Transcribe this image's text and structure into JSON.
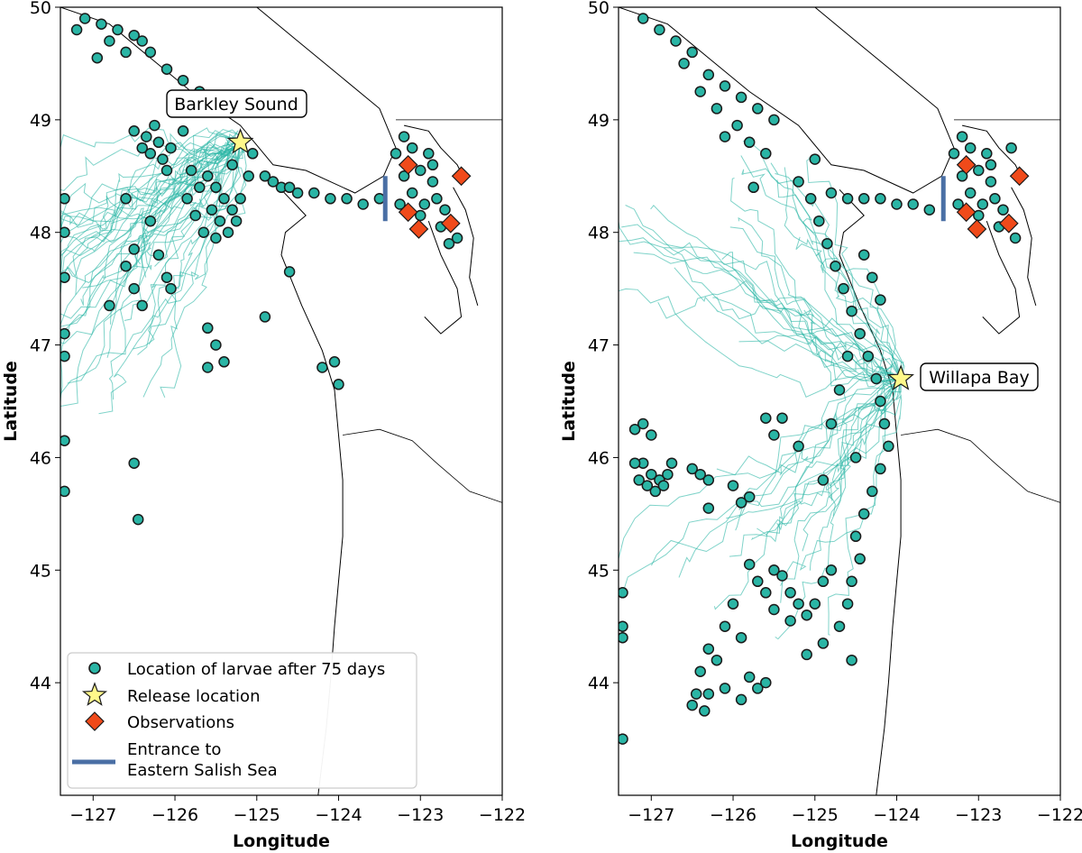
{
  "chart_data": [
    {
      "type": "scatter",
      "panel": "left",
      "xlabel": "Longitude",
      "ylabel": "Latitude",
      "xlim": [
        -127.4,
        -122.0
      ],
      "ylim": [
        43.0,
        50.0
      ],
      "xticks": [
        -127,
        -126,
        -125,
        -124,
        -123,
        -122
      ],
      "yticks": [
        44,
        45,
        46,
        47,
        48,
        49,
        50
      ],
      "xtick_labels": [
        "−127",
        "−126",
        "−125",
        "−124",
        "−123",
        "−122"
      ],
      "ytick_labels": [
        "44",
        "45",
        "46",
        "47",
        "48",
        "49",
        "50"
      ],
      "annotation": "Barkley Sound",
      "release_location": {
        "lon": -125.2,
        "lat": 48.8
      },
      "observations": [
        {
          "lon": -123.15,
          "lat": 48.6
        },
        {
          "lon": -122.5,
          "lat": 48.5
        },
        {
          "lon": -123.15,
          "lat": 48.18
        },
        {
          "lon": -123.02,
          "lat": 48.03
        },
        {
          "lon": -122.63,
          "lat": 48.08
        }
      ],
      "entrance_line": {
        "lon": -123.43,
        "lat_range": [
          48.1,
          48.5
        ]
      },
      "legend": {
        "position": "lower-left",
        "entries": [
          {
            "label": "Location of larvae after 75 days",
            "marker": "circle",
            "color": "#2ab5a5"
          },
          {
            "label": "Release location",
            "marker": "star",
            "color": "#fff88a"
          },
          {
            "label": "Observations",
            "marker": "diamond",
            "color": "#f04a1a"
          },
          {
            "label_lines": [
              "Entrance to",
              "Eastern Salish Sea"
            ],
            "marker": "line",
            "color": "#4a6fa5"
          }
        ]
      },
      "larvae": [
        [
          -127.1,
          49.9
        ],
        [
          -126.9,
          49.85
        ],
        [
          -126.7,
          49.8
        ],
        [
          -126.5,
          49.75
        ],
        [
          -126.3,
          49.6
        ],
        [
          -126.1,
          49.45
        ],
        [
          -125.9,
          49.35
        ],
        [
          -125.7,
          49.25
        ],
        [
          -125.5,
          49.15
        ],
        [
          -126.6,
          49.6
        ],
        [
          -126.4,
          49.7
        ],
        [
          -126.8,
          49.7
        ],
        [
          -127.2,
          49.8
        ],
        [
          -126.95,
          49.55
        ],
        [
          -126.5,
          48.9
        ],
        [
          -126.35,
          48.85
        ],
        [
          -126.2,
          48.8
        ],
        [
          -126.05,
          48.75
        ],
        [
          -126.3,
          48.7
        ],
        [
          -126.15,
          48.65
        ],
        [
          -126.4,
          48.75
        ],
        [
          -126.25,
          48.95
        ],
        [
          -125.9,
          48.9
        ],
        [
          -126.1,
          48.55
        ],
        [
          -125.8,
          48.55
        ],
        [
          -125.6,
          48.5
        ],
        [
          -125.5,
          48.4
        ],
        [
          -125.4,
          48.3
        ],
        [
          -125.3,
          48.2
        ],
        [
          -125.25,
          48.1
        ],
        [
          -125.35,
          48.0
        ],
        [
          -125.5,
          47.95
        ],
        [
          -125.65,
          48.0
        ],
        [
          -125.75,
          48.15
        ],
        [
          -125.85,
          48.3
        ],
        [
          -125.7,
          48.4
        ],
        [
          -125.55,
          48.2
        ],
        [
          -125.45,
          48.1
        ],
        [
          -125.2,
          48.3
        ],
        [
          -125.1,
          48.5
        ],
        [
          -125.3,
          48.6
        ],
        [
          -125.05,
          48.7
        ],
        [
          -124.9,
          48.5
        ],
        [
          -126.6,
          48.3
        ],
        [
          -126.3,
          48.1
        ],
        [
          -126.1,
          47.6
        ],
        [
          -126.05,
          47.5
        ],
        [
          -126.5,
          47.5
        ],
        [
          -126.2,
          47.8
        ],
        [
          -126.8,
          47.35
        ],
        [
          -126.4,
          47.35
        ],
        [
          -126.6,
          47.7
        ],
        [
          -126.5,
          47.85
        ],
        [
          -125.6,
          47.15
        ],
        [
          -125.5,
          47.0
        ],
        [
          -125.4,
          46.85
        ],
        [
          -125.6,
          46.8
        ],
        [
          -124.9,
          47.25
        ],
        [
          -124.6,
          47.65
        ],
        [
          -124.2,
          46.8
        ],
        [
          -124.05,
          46.85
        ],
        [
          -124.0,
          46.65
        ],
        [
          -126.5,
          45.95
        ],
        [
          -126.45,
          45.45
        ],
        [
          -124.7,
          48.4
        ],
        [
          -124.5,
          48.35
        ],
        [
          -124.3,
          48.35
        ],
        [
          -124.1,
          48.3
        ],
        [
          -123.9,
          48.3
        ],
        [
          -123.7,
          48.25
        ],
        [
          -123.5,
          48.3
        ],
        [
          -124.8,
          48.45
        ],
        [
          -124.6,
          48.4
        ],
        [
          -123.3,
          48.7
        ],
        [
          -123.1,
          48.75
        ],
        [
          -122.9,
          48.7
        ],
        [
          -123.2,
          48.5
        ],
        [
          -123.0,
          48.55
        ],
        [
          -122.85,
          48.45
        ],
        [
          -123.1,
          48.35
        ],
        [
          -122.95,
          48.25
        ],
        [
          -122.8,
          48.3
        ],
        [
          -122.7,
          48.2
        ],
        [
          -123.25,
          48.25
        ],
        [
          -123.0,
          48.15
        ],
        [
          -122.75,
          48.05
        ],
        [
          -122.85,
          48.6
        ],
        [
          -123.2,
          48.85
        ],
        [
          -122.55,
          47.95
        ],
        [
          -122.65,
          47.9
        ],
        [
          -127.35,
          48.3
        ],
        [
          -127.35,
          48.0
        ],
        [
          -127.35,
          47.6
        ],
        [
          -127.35,
          47.1
        ],
        [
          -127.35,
          46.9
        ],
        [
          -127.35,
          46.15
        ],
        [
          -127.35,
          45.7
        ]
      ]
    },
    {
      "type": "scatter",
      "panel": "right",
      "xlabel": "Longitude",
      "ylabel": "Latitude",
      "xlim": [
        -127.4,
        -122.0
      ],
      "ylim": [
        43.0,
        50.0
      ],
      "xticks": [
        -127,
        -126,
        -125,
        -124,
        -123,
        -122
      ],
      "yticks": [
        44,
        45,
        46,
        47,
        48,
        49,
        50
      ],
      "xtick_labels": [
        "−127",
        "−126",
        "−125",
        "−124",
        "−123",
        "−122"
      ],
      "ytick_labels": [
        "44",
        "45",
        "46",
        "47",
        "48",
        "49",
        "50"
      ],
      "annotation": "Willapa Bay",
      "release_location": {
        "lon": -123.95,
        "lat": 46.7
      },
      "observations": [
        {
          "lon": -123.15,
          "lat": 48.6
        },
        {
          "lon": -122.5,
          "lat": 48.5
        },
        {
          "lon": -123.15,
          "lat": 48.18
        },
        {
          "lon": -123.02,
          "lat": 48.03
        },
        {
          "lon": -122.63,
          "lat": 48.08
        }
      ],
      "entrance_line": {
        "lon": -123.43,
        "lat_range": [
          48.1,
          48.5
        ]
      },
      "larvae": [
        [
          -127.1,
          49.9
        ],
        [
          -126.9,
          49.8
        ],
        [
          -126.7,
          49.7
        ],
        [
          -126.5,
          49.6
        ],
        [
          -126.3,
          49.4
        ],
        [
          -126.1,
          49.3
        ],
        [
          -125.9,
          49.2
        ],
        [
          -125.7,
          49.1
        ],
        [
          -125.5,
          49.0
        ],
        [
          -126.4,
          49.25
        ],
        [
          -126.2,
          49.1
        ],
        [
          -125.95,
          48.95
        ],
        [
          -126.1,
          48.85
        ],
        [
          -126.6,
          49.5
        ],
        [
          -125.8,
          48.8
        ],
        [
          -125.6,
          48.7
        ],
        [
          -125.0,
          48.65
        ],
        [
          -125.75,
          48.4
        ],
        [
          -125.2,
          48.45
        ],
        [
          -125.05,
          48.3
        ],
        [
          -124.95,
          48.1
        ],
        [
          -124.85,
          47.9
        ],
        [
          -124.75,
          47.7
        ],
        [
          -124.65,
          47.5
        ],
        [
          -124.55,
          47.3
        ],
        [
          -124.45,
          47.1
        ],
        [
          -124.35,
          46.9
        ],
        [
          -124.25,
          46.7
        ],
        [
          -124.2,
          46.5
        ],
        [
          -124.15,
          46.3
        ],
        [
          -124.1,
          46.1
        ],
        [
          -124.2,
          45.9
        ],
        [
          -124.3,
          45.7
        ],
        [
          -124.4,
          45.5
        ],
        [
          -124.5,
          45.3
        ],
        [
          -124.45,
          45.1
        ],
        [
          -124.55,
          44.9
        ],
        [
          -124.6,
          44.7
        ],
        [
          -124.7,
          44.5
        ],
        [
          -124.55,
          44.2
        ],
        [
          -124.4,
          47.8
        ],
        [
          -124.3,
          47.6
        ],
        [
          -124.2,
          47.4
        ],
        [
          -124.6,
          46.9
        ],
        [
          -124.7,
          46.6
        ],
        [
          -124.8,
          46.3
        ],
        [
          -124.5,
          46.0
        ],
        [
          -124.9,
          45.8
        ],
        [
          -124.8,
          45.0
        ],
        [
          -124.9,
          44.9
        ],
        [
          -125.0,
          44.7
        ],
        [
          -124.6,
          48.3
        ],
        [
          -124.4,
          48.3
        ],
        [
          -124.2,
          48.3
        ],
        [
          -124.0,
          48.25
        ],
        [
          -123.8,
          48.25
        ],
        [
          -123.6,
          48.2
        ],
        [
          -124.8,
          48.35
        ],
        [
          -123.3,
          48.7
        ],
        [
          -123.1,
          48.75
        ],
        [
          -122.9,
          48.7
        ],
        [
          -123.2,
          48.5
        ],
        [
          -123.0,
          48.55
        ],
        [
          -122.85,
          48.45
        ],
        [
          -123.1,
          48.35
        ],
        [
          -122.95,
          48.25
        ],
        [
          -122.8,
          48.3
        ],
        [
          -122.7,
          48.2
        ],
        [
          -123.25,
          48.25
        ],
        [
          -123.0,
          48.15
        ],
        [
          -122.75,
          48.05
        ],
        [
          -122.85,
          48.6
        ],
        [
          -123.2,
          48.85
        ],
        [
          -122.55,
          47.95
        ],
        [
          -122.6,
          48.75
        ],
        [
          -127.1,
          45.95
        ],
        [
          -127.0,
          45.85
        ],
        [
          -126.9,
          45.8
        ],
        [
          -126.8,
          45.85
        ],
        [
          -127.05,
          45.75
        ],
        [
          -126.95,
          45.7
        ],
        [
          -126.85,
          45.75
        ],
        [
          -127.2,
          45.95
        ],
        [
          -127.15,
          45.8
        ],
        [
          -126.75,
          45.95
        ],
        [
          -127.0,
          46.2
        ],
        [
          -127.2,
          46.25
        ],
        [
          -127.1,
          46.3
        ],
        [
          -126.5,
          45.9
        ],
        [
          -126.4,
          45.85
        ],
        [
          -126.3,
          45.8
        ],
        [
          -126.0,
          45.75
        ],
        [
          -125.8,
          45.65
        ],
        [
          -125.9,
          45.6
        ],
        [
          -126.3,
          45.55
        ],
        [
          -125.5,
          46.2
        ],
        [
          -125.2,
          46.1
        ],
        [
          -125.4,
          46.35
        ],
        [
          -125.6,
          46.35
        ],
        [
          -125.8,
          45.05
        ],
        [
          -125.7,
          44.9
        ],
        [
          -125.6,
          44.8
        ],
        [
          -125.5,
          45.0
        ],
        [
          -125.4,
          44.95
        ],
        [
          -125.3,
          44.8
        ],
        [
          -125.2,
          44.7
        ],
        [
          -125.5,
          44.65
        ],
        [
          -125.3,
          44.55
        ],
        [
          -125.1,
          44.6
        ],
        [
          -126.0,
          44.7
        ],
        [
          -126.1,
          44.5
        ],
        [
          -125.9,
          44.4
        ],
        [
          -126.3,
          44.3
        ],
        [
          -126.2,
          44.2
        ],
        [
          -126.4,
          44.1
        ],
        [
          -126.3,
          43.9
        ],
        [
          -126.1,
          43.95
        ],
        [
          -125.9,
          43.85
        ],
        [
          -125.7,
          43.95
        ],
        [
          -125.6,
          44.0
        ],
        [
          -125.8,
          44.05
        ],
        [
          -126.5,
          43.8
        ],
        [
          -126.35,
          43.75
        ],
        [
          -126.45,
          43.9
        ],
        [
          -125.1,
          44.25
        ],
        [
          -124.9,
          44.35
        ],
        [
          -127.35,
          44.8
        ],
        [
          -127.35,
          44.5
        ],
        [
          -127.35,
          44.4
        ],
        [
          -127.35,
          43.5
        ]
      ]
    }
  ]
}
